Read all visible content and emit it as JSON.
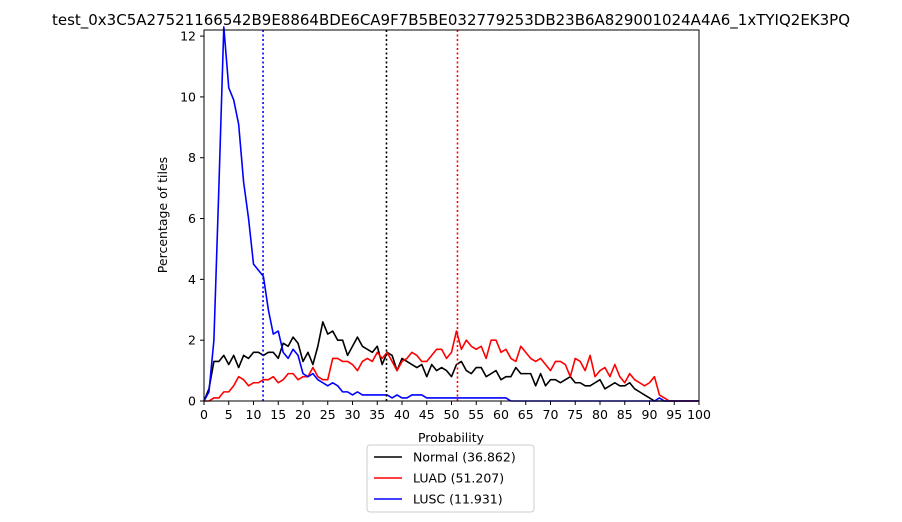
{
  "chart_data": {
    "type": "line",
    "title": "test_0x3C5A27521166542B9E8864BDE6CA9F7B5BE032779253DB23B6A829001024A4A6_1xTYIQ2EK3PQ",
    "xlabel": "Probability",
    "ylabel": "Percentage of tiles",
    "xlim": [
      0,
      100
    ],
    "ylim": [
      0,
      12.2
    ],
    "xticks": [
      0,
      5,
      10,
      15,
      20,
      25,
      30,
      35,
      40,
      45,
      50,
      55,
      60,
      65,
      70,
      75,
      80,
      85,
      90,
      95,
      100
    ],
    "yticks": [
      0,
      2,
      4,
      6,
      8,
      10,
      12
    ],
    "grid": false,
    "legend_placement": "below-axes",
    "series": [
      {
        "name": "Normal (36.862)",
        "color": "#000000",
        "mean": 36.862,
        "values": [
          0,
          0.4,
          1.3,
          1.3,
          1.5,
          1.2,
          1.5,
          1.1,
          1.5,
          1.4,
          1.6,
          1.6,
          1.5,
          1.6,
          1.6,
          1.4,
          1.9,
          1.8,
          2.1,
          1.9,
          1.3,
          1.6,
          1.2,
          1.8,
          2.6,
          2.2,
          2.3,
          2.0,
          2.0,
          1.5,
          1.8,
          2.1,
          1.8,
          1.7,
          1.6,
          1.8,
          1.2,
          1.6,
          1.5,
          1.0,
          1.4,
          1.3,
          1.2,
          1.1,
          1.2,
          0.8,
          1.2,
          1.0,
          1.1,
          1.0,
          0.8,
          1.2,
          1.3,
          1.0,
          0.9,
          1.1,
          1.1,
          0.8,
          0.9,
          1.0,
          0.7,
          0.8,
          0.8,
          1.1,
          0.9,
          0.9,
          0.9,
          0.5,
          0.9,
          0.5,
          0.7,
          0.7,
          0.6,
          0.7,
          0.8,
          0.6,
          0.6,
          0.5,
          0.5,
          0.6,
          0.7,
          0.4,
          0.5,
          0.6,
          0.5,
          0.5,
          0.6,
          0.4,
          0.3,
          0.2,
          0.1,
          0,
          0,
          0,
          0,
          0,
          0,
          0,
          0,
          0,
          0
        ]
      },
      {
        "name": "LUAD (51.207)",
        "color": "#ff0000",
        "mean": 51.207,
        "values": [
          0,
          0,
          0.1,
          0.1,
          0.3,
          0.3,
          0.5,
          0.8,
          0.7,
          0.5,
          0.6,
          0.6,
          0.7,
          0.7,
          0.8,
          0.6,
          0.7,
          0.9,
          0.9,
          0.7,
          0.8,
          0.8,
          1.1,
          0.8,
          0.7,
          0.7,
          1.4,
          1.4,
          1.3,
          1.3,
          1.2,
          1.0,
          1.3,
          1.4,
          1.3,
          1.6,
          1.4,
          1.6,
          1.3,
          1.0,
          1.3,
          1.4,
          1.6,
          1.5,
          1.3,
          1.3,
          1.5,
          1.7,
          1.7,
          1.4,
          1.6,
          2.3,
          1.7,
          2.0,
          1.8,
          1.7,
          1.8,
          1.4,
          2.0,
          2.0,
          1.6,
          1.7,
          1.4,
          1.3,
          1.8,
          1.6,
          1.4,
          1.3,
          1.4,
          1.2,
          1.0,
          1.3,
          1.3,
          1.2,
          0.8,
          1.4,
          1.3,
          1.0,
          1.5,
          0.8,
          1.0,
          1.1,
          0.8,
          1.2,
          0.8,
          0.6,
          0.9,
          0.7,
          0.6,
          0.5,
          0.6,
          0.8,
          0.2,
          0.1,
          0,
          0,
          0,
          0,
          0,
          0,
          0
        ]
      },
      {
        "name": "LUSC (11.931)",
        "color": "#0000ff",
        "mean": 11.931,
        "values": [
          0,
          0.3,
          2.0,
          7.0,
          12.3,
          10.3,
          9.9,
          9.1,
          7.2,
          6.0,
          4.5,
          4.3,
          4.1,
          3.0,
          2.2,
          2.3,
          1.6,
          1.4,
          1.7,
          1.5,
          0.9,
          0.8,
          0.9,
          0.7,
          0.6,
          0.5,
          0.6,
          0.5,
          0.3,
          0.3,
          0.2,
          0.3,
          0.2,
          0.2,
          0.2,
          0.2,
          0.2,
          0.2,
          0.1,
          0.2,
          0.1,
          0.1,
          0.2,
          0.2,
          0.2,
          0.1,
          0.1,
          0.1,
          0.1,
          0.1,
          0.1,
          0.1,
          0.1,
          0.1,
          0.1,
          0.1,
          0.1,
          0.1,
          0.1,
          0.1,
          0.1,
          0.1,
          0,
          0,
          0,
          0,
          0,
          0,
          0,
          0,
          0,
          0,
          0,
          0,
          0,
          0,
          0,
          0,
          0,
          0,
          0,
          0,
          0,
          0,
          0,
          0,
          0,
          0,
          0,
          0,
          0,
          0,
          0.1,
          0,
          0,
          0,
          0,
          0,
          0,
          0,
          0
        ]
      }
    ]
  }
}
